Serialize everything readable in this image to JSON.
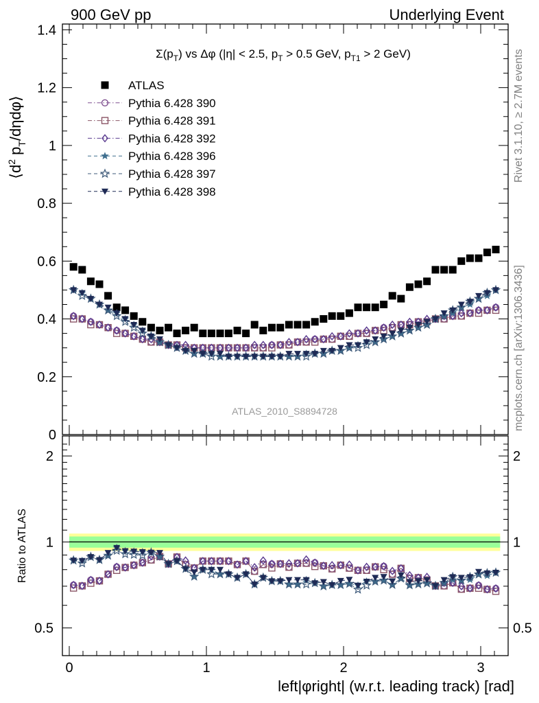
{
  "header": {
    "left": "900 GeV pp",
    "right": "Underlying Event"
  },
  "side_labels": {
    "rivet": "Rivet 3.1.10, ≥ 2.7M events",
    "mcplots": "mcplots.cern.ch [arXiv:1306.3436]"
  },
  "top_panel": {
    "plot_title": "Σ(p_T) vs Δφ (|η| < 2.5, p_T > 0.5 GeV, p_T1 > 2 GeV)",
    "ylabel": "⟨d² p_T/dηdφ⟩",
    "analysis_tag": "ATLAS_2010_S8894728",
    "y_ticks": [
      "0",
      "0.2",
      "0.4",
      "0.6",
      "0.8",
      "1",
      "1.2",
      "1.4"
    ]
  },
  "ratio_panel": {
    "ylabel": "Ratio to ATLAS",
    "y_ticks": [
      "0.5",
      "1",
      "2"
    ]
  },
  "xaxis": {
    "label": "left|φright| (w.r.t. leading track) [rad]",
    "ticks": [
      "0",
      "1",
      "2",
      "3"
    ]
  },
  "legend": [
    {
      "name": "ATLAS",
      "color": "#000000",
      "marker": "filled-square",
      "line": "none"
    },
    {
      "name": "Pythia 6.428 390",
      "color": "#7f4f8f",
      "marker": "open-circle",
      "line": "dash-dot"
    },
    {
      "name": "Pythia 6.428 391",
      "color": "#8a5566",
      "marker": "open-square",
      "line": "dash-dot"
    },
    {
      "name": "Pythia 6.428 392",
      "color": "#5a3a8f",
      "marker": "open-diamond",
      "line": "dash-dot"
    },
    {
      "name": "Pythia 6.428 396",
      "color": "#3e6e8e",
      "marker": "filled-star",
      "line": "dashed"
    },
    {
      "name": "Pythia 6.428 397",
      "color": "#3e5a7a",
      "marker": "open-star",
      "line": "dashed"
    },
    {
      "name": "Pythia 6.428 398",
      "color": "#1e2a55",
      "marker": "filled-triangle-down",
      "line": "dashed"
    }
  ],
  "chart_data": {
    "type": "scatter",
    "xlim": [
      -0.05,
      3.2
    ],
    "ylim_top": [
      0,
      1.42
    ],
    "ylim_ratio_log": [
      0.4,
      2.35
    ],
    "x": [
      0.031,
      0.094,
      0.157,
      0.22,
      0.283,
      0.346,
      0.408,
      0.471,
      0.534,
      0.597,
      0.66,
      0.723,
      0.785,
      0.848,
      0.911,
      0.974,
      1.037,
      1.1,
      1.162,
      1.225,
      1.288,
      1.351,
      1.414,
      1.477,
      1.539,
      1.602,
      1.665,
      1.728,
      1.791,
      1.854,
      1.916,
      1.979,
      2.042,
      2.105,
      2.168,
      2.231,
      2.293,
      2.356,
      2.419,
      2.482,
      2.545,
      2.608,
      2.67,
      2.733,
      2.796,
      2.859,
      2.922,
      2.985,
      3.047,
      3.11
    ],
    "series": [
      {
        "name": "ATLAS",
        "values": [
          0.58,
          0.57,
          0.53,
          0.52,
          0.48,
          0.44,
          0.43,
          0.41,
          0.39,
          0.37,
          0.36,
          0.37,
          0.35,
          0.36,
          0.37,
          0.35,
          0.35,
          0.35,
          0.35,
          0.36,
          0.35,
          0.38,
          0.36,
          0.37,
          0.37,
          0.38,
          0.38,
          0.38,
          0.39,
          0.4,
          0.41,
          0.41,
          0.42,
          0.44,
          0.44,
          0.44,
          0.45,
          0.48,
          0.47,
          0.51,
          0.52,
          0.53,
          0.57,
          0.57,
          0.57,
          0.6,
          0.61,
          0.61,
          0.63,
          0.64
        ]
      },
      {
        "name": "Pythia 6.428 390",
        "values": [
          0.41,
          0.4,
          0.39,
          0.38,
          0.37,
          0.36,
          0.35,
          0.34,
          0.33,
          0.32,
          0.32,
          0.31,
          0.31,
          0.3,
          0.3,
          0.3,
          0.3,
          0.3,
          0.3,
          0.3,
          0.3,
          0.3,
          0.3,
          0.31,
          0.31,
          0.31,
          0.32,
          0.32,
          0.33,
          0.33,
          0.33,
          0.34,
          0.34,
          0.35,
          0.35,
          0.36,
          0.37,
          0.37,
          0.38,
          0.38,
          0.39,
          0.39,
          0.4,
          0.4,
          0.41,
          0.41,
          0.42,
          0.43,
          0.43,
          0.44
        ]
      },
      {
        "name": "Pythia 6.428 391",
        "values": [
          0.4,
          0.4,
          0.38,
          0.38,
          0.37,
          0.35,
          0.35,
          0.34,
          0.33,
          0.32,
          0.32,
          0.31,
          0.31,
          0.3,
          0.3,
          0.3,
          0.3,
          0.3,
          0.3,
          0.3,
          0.3,
          0.3,
          0.3,
          0.3,
          0.31,
          0.31,
          0.32,
          0.32,
          0.32,
          0.33,
          0.33,
          0.34,
          0.34,
          0.35,
          0.35,
          0.36,
          0.36,
          0.37,
          0.38,
          0.38,
          0.39,
          0.39,
          0.4,
          0.4,
          0.41,
          0.41,
          0.42,
          0.42,
          0.43,
          0.43
        ]
      },
      {
        "name": "Pythia 6.428 392",
        "values": [
          0.41,
          0.4,
          0.39,
          0.38,
          0.37,
          0.36,
          0.35,
          0.34,
          0.33,
          0.33,
          0.32,
          0.31,
          0.31,
          0.31,
          0.3,
          0.3,
          0.3,
          0.3,
          0.3,
          0.3,
          0.3,
          0.31,
          0.31,
          0.31,
          0.31,
          0.32,
          0.32,
          0.33,
          0.33,
          0.33,
          0.34,
          0.34,
          0.35,
          0.35,
          0.36,
          0.36,
          0.37,
          0.38,
          0.38,
          0.39,
          0.39,
          0.4,
          0.4,
          0.41,
          0.41,
          0.42,
          0.42,
          0.43,
          0.43,
          0.44
        ]
      },
      {
        "name": "Pythia 6.428 396",
        "values": [
          0.5,
          0.49,
          0.47,
          0.45,
          0.43,
          0.42,
          0.4,
          0.38,
          0.36,
          0.34,
          0.32,
          0.31,
          0.3,
          0.29,
          0.28,
          0.28,
          0.28,
          0.27,
          0.27,
          0.27,
          0.27,
          0.27,
          0.27,
          0.27,
          0.27,
          0.27,
          0.27,
          0.28,
          0.28,
          0.28,
          0.29,
          0.29,
          0.3,
          0.31,
          0.32,
          0.32,
          0.33,
          0.34,
          0.35,
          0.36,
          0.37,
          0.38,
          0.4,
          0.41,
          0.42,
          0.44,
          0.45,
          0.47,
          0.48,
          0.5
        ]
      },
      {
        "name": "Pythia 6.428 397",
        "values": [
          0.5,
          0.48,
          0.47,
          0.45,
          0.43,
          0.41,
          0.39,
          0.37,
          0.35,
          0.34,
          0.32,
          0.31,
          0.3,
          0.29,
          0.28,
          0.28,
          0.27,
          0.27,
          0.27,
          0.27,
          0.27,
          0.27,
          0.27,
          0.27,
          0.27,
          0.27,
          0.27,
          0.27,
          0.28,
          0.28,
          0.29,
          0.29,
          0.3,
          0.3,
          0.31,
          0.32,
          0.33,
          0.34,
          0.35,
          0.36,
          0.37,
          0.38,
          0.4,
          0.41,
          0.43,
          0.44,
          0.46,
          0.47,
          0.49,
          0.5
        ]
      },
      {
        "name": "Pythia 6.428 398",
        "values": [
          0.5,
          0.49,
          0.47,
          0.45,
          0.44,
          0.42,
          0.4,
          0.38,
          0.36,
          0.34,
          0.33,
          0.31,
          0.3,
          0.29,
          0.29,
          0.28,
          0.28,
          0.28,
          0.27,
          0.27,
          0.27,
          0.27,
          0.27,
          0.27,
          0.27,
          0.28,
          0.28,
          0.28,
          0.28,
          0.29,
          0.29,
          0.3,
          0.31,
          0.31,
          0.32,
          0.33,
          0.34,
          0.35,
          0.36,
          0.37,
          0.38,
          0.39,
          0.4,
          0.42,
          0.43,
          0.45,
          0.46,
          0.48,
          0.49,
          0.5
        ]
      }
    ],
    "ratio_band": {
      "inner": 0.045,
      "outer": 0.07
    }
  }
}
